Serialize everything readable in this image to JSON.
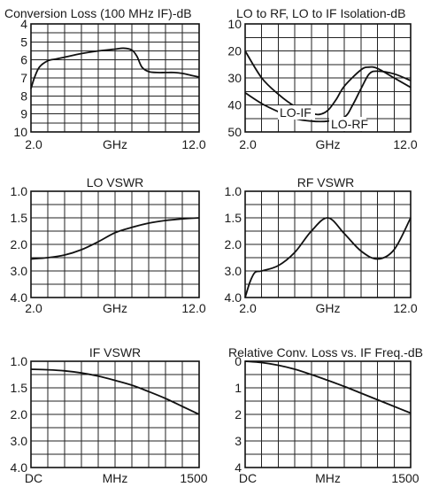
{
  "chart_data": [
    {
      "type": "line",
      "title": "Conversion Loss (100 MHz IF)-dB",
      "xlabel": "GHz",
      "x_tick_labels": [
        "2.0",
        "12.0"
      ],
      "y_tick_labels": [
        "4",
        "5",
        "6",
        "7",
        "8",
        "9",
        "10"
      ],
      "xlim": [
        2.0,
        12.0
      ],
      "ylim": [
        4,
        10
      ],
      "y_inverted": true,
      "grid": true,
      "series": [
        {
          "x": [
            2.0,
            2.2,
            2.5,
            3.0,
            3.5,
            4.0,
            5.0,
            6.0,
            7.0,
            7.5,
            8.0,
            8.3,
            8.6,
            9.0,
            9.5,
            10.0,
            10.5,
            11.0,
            11.5,
            12.0
          ],
          "y": [
            7.6,
            7.0,
            6.4,
            6.05,
            5.95,
            5.85,
            5.65,
            5.5,
            5.4,
            5.35,
            5.45,
            5.8,
            6.4,
            6.65,
            6.7,
            6.7,
            6.7,
            6.75,
            6.85,
            6.95
          ]
        }
      ]
    },
    {
      "type": "line",
      "title": "LO to RF, LO to IF Isolation-dB",
      "xlabel": "GHz",
      "x_tick_labels": [
        "2.0",
        "12.0"
      ],
      "y_tick_labels": [
        "10",
        "20",
        "30",
        "40",
        "50"
      ],
      "xlim": [
        2.0,
        12.0
      ],
      "ylim": [
        10,
        50
      ],
      "y_inverted": true,
      "grid": true,
      "series": [
        {
          "name": "LO-IF",
          "x": [
            2.0,
            3.0,
            4.0,
            5.0,
            6.0,
            6.5,
            7.0,
            7.5,
            8.0,
            9.0,
            9.5,
            10.0,
            11.0,
            12.0
          ],
          "y": [
            20.0,
            30.0,
            36.0,
            40.5,
            43.0,
            43.5,
            42.0,
            38.0,
            33.0,
            27.0,
            26.0,
            26.5,
            30.0,
            33.5
          ]
        },
        {
          "name": "LO-RF",
          "x": [
            2.0,
            3.0,
            4.0,
            5.0,
            6.0,
            7.0,
            8.0,
            8.5,
            9.0,
            9.5,
            10.0,
            11.0,
            12.0
          ],
          "y": [
            35.5,
            39.5,
            42.5,
            45.0,
            46.0,
            46.0,
            44.5,
            40.0,
            34.0,
            28.5,
            27.5,
            28.5,
            31.0
          ]
        }
      ]
    },
    {
      "type": "line",
      "title": "LO VSWR",
      "xlabel": "GHz",
      "x_tick_labels": [
        "2.0",
        "12.0"
      ],
      "y_tick_labels": [
        "1.0",
        "1.5",
        "2.0",
        "3.0",
        "4.0"
      ],
      "xlim": [
        2.0,
        12.0
      ],
      "grid": true,
      "series": [
        {
          "x": [
            2.0,
            3.0,
            4.0,
            5.0,
            6.0,
            7.0,
            8.0,
            9.0,
            10.0,
            11.0,
            12.0
          ],
          "y": [
            2.55,
            2.5,
            2.4,
            2.2,
            1.95,
            1.78,
            1.68,
            1.6,
            1.55,
            1.52,
            1.5
          ]
        }
      ]
    },
    {
      "type": "line",
      "title": "RF VSWR",
      "xlabel": "GHz",
      "x_tick_labels": [
        "2.0",
        "12.0"
      ],
      "y_tick_labels": [
        "1.0",
        "1.5",
        "2.0",
        "3.0",
        "4.0"
      ],
      "xlim": [
        2.0,
        12.0
      ],
      "grid": true,
      "series": [
        {
          "x": [
            2.0,
            2.3,
            2.6,
            3.0,
            4.0,
            5.0,
            6.0,
            7.0,
            8.0,
            9.0,
            10.0,
            11.0,
            12.0
          ],
          "y": [
            4.0,
            3.4,
            3.05,
            3.0,
            2.8,
            2.3,
            1.75,
            1.5,
            1.8,
            2.25,
            2.55,
            2.2,
            1.5
          ]
        }
      ]
    },
    {
      "type": "line",
      "title": "IF VSWR",
      "xlabel": "MHz",
      "x_tick_labels": [
        "DC",
        "1500"
      ],
      "y_tick_labels": [
        "1.0",
        "1.5",
        "2.0",
        "3.0",
        "4.0"
      ],
      "xlim": [
        0,
        1500
      ],
      "grid": true,
      "series": [
        {
          "x": [
            0,
            150,
            300,
            450,
            600,
            750,
            900,
            1050,
            1200,
            1350,
            1500
          ],
          "y": [
            1.15,
            1.16,
            1.18,
            1.22,
            1.28,
            1.36,
            1.45,
            1.57,
            1.7,
            1.85,
            2.0
          ]
        }
      ]
    },
    {
      "type": "line",
      "title": "Relative Conv. Loss vs. IF Freq.-dB",
      "xlabel": "MHz",
      "x_tick_labels": [
        "DC",
        "1500"
      ],
      "y_tick_labels": [
        "0",
        "1",
        "2",
        "3",
        "4"
      ],
      "xlim": [
        0,
        1500
      ],
      "ylim": [
        0,
        4
      ],
      "y_inverted": true,
      "grid": true,
      "series": [
        {
          "x": [
            0,
            150,
            300,
            450,
            600,
            750,
            900,
            1050,
            1200,
            1350,
            1500
          ],
          "y": [
            0.0,
            0.05,
            0.15,
            0.3,
            0.5,
            0.72,
            0.95,
            1.2,
            1.45,
            1.7,
            1.95
          ]
        }
      ]
    }
  ]
}
